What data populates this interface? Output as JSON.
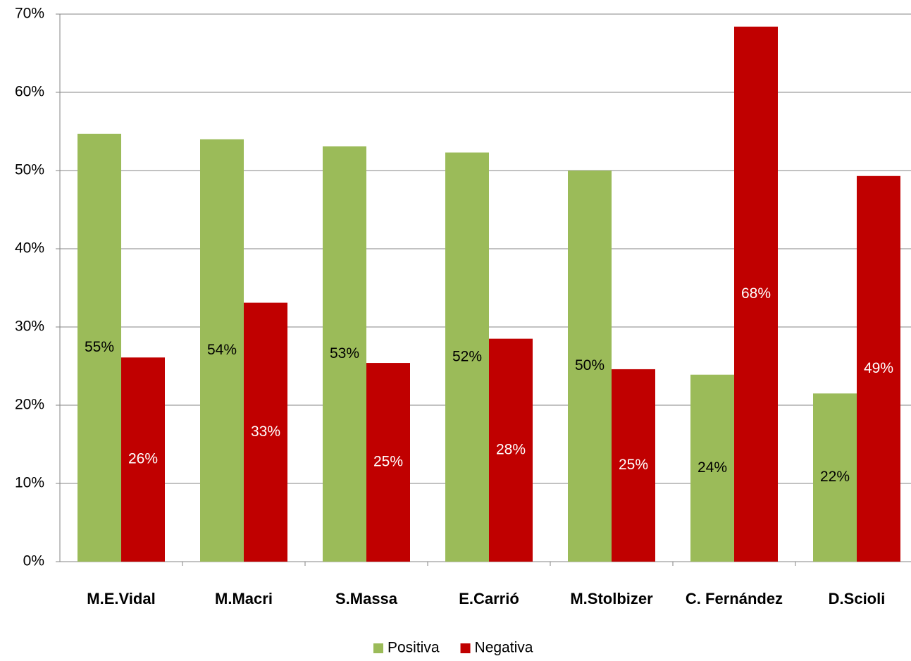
{
  "chart_data": {
    "type": "bar",
    "categories": [
      "M.E.Vidal",
      "M.Macri",
      "S.Massa",
      "E.Carrió",
      "M.Stolbizer",
      "C. Fernández",
      "D.Scioli"
    ],
    "series": [
      {
        "name": "Positiva",
        "color": "#9bbb59",
        "label_color": "#000000",
        "values": [
          54.7,
          54.0,
          53.1,
          52.3,
          50.0,
          23.9,
          21.5
        ],
        "value_labels": [
          "55%",
          "54%",
          "53%",
          "52%",
          "50%",
          "24%",
          "22%"
        ]
      },
      {
        "name": "Negativa",
        "color": "#c00000",
        "label_color": "#ffffff",
        "values": [
          26.1,
          33.1,
          25.4,
          28.5,
          24.6,
          68.4,
          49.3
        ],
        "value_labels": [
          "26%",
          "33%",
          "25%",
          "28%",
          "25%",
          "68%",
          "49%"
        ]
      }
    ],
    "ylim": [
      0,
      70
    ],
    "yticks": [
      {
        "value": 0,
        "label": "0%"
      },
      {
        "value": 10,
        "label": "10%"
      },
      {
        "value": 20,
        "label": "20%"
      },
      {
        "value": 30,
        "label": "30%"
      },
      {
        "value": 40,
        "label": "40%"
      },
      {
        "value": 50,
        "label": "50%"
      },
      {
        "value": 60,
        "label": "60%"
      },
      {
        "value": 70,
        "label": "70%"
      }
    ],
    "grid": true,
    "legend": "bottom"
  }
}
